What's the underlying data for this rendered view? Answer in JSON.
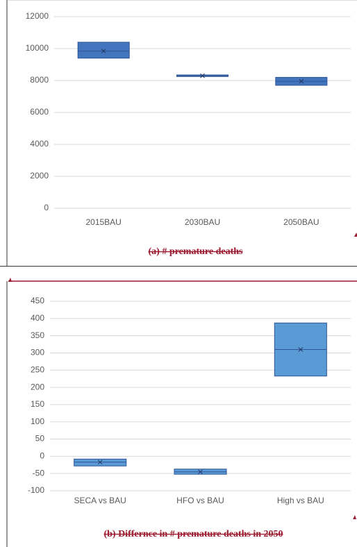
{
  "chart_data": [
    {
      "type": "box",
      "categories": [
        "2015BAU",
        "2030BAU",
        "2050BAU"
      ],
      "low": [
        9400,
        8250,
        7700
      ],
      "high": [
        10400,
        8350,
        8200
      ],
      "mean": [
        9850,
        8300,
        7950
      ],
      "ylim": [
        0,
        12000
      ],
      "yticks": [
        0,
        2000,
        4000,
        6000,
        8000,
        10000,
        12000
      ],
      "color": "#4275bd",
      "grid": true,
      "caption": "(a)   # premature deaths"
    },
    {
      "type": "box",
      "categories": [
        "SECA vs BAU",
        "HFO vs BAU",
        "High vs BAU"
      ],
      "low": [
        -28,
        -52,
        233
      ],
      "high": [
        -8,
        -37,
        387
      ],
      "mean": [
        -17,
        -45,
        310
      ],
      "ylim": [
        -100,
        450
      ],
      "yticks": [
        -100,
        -50,
        0,
        50,
        100,
        150,
        200,
        250,
        300,
        350,
        400,
        450
      ],
      "color": "#5b9bd5",
      "grid": true,
      "caption": "(b)   Differnce in # premature deaths in 2050"
    }
  ]
}
